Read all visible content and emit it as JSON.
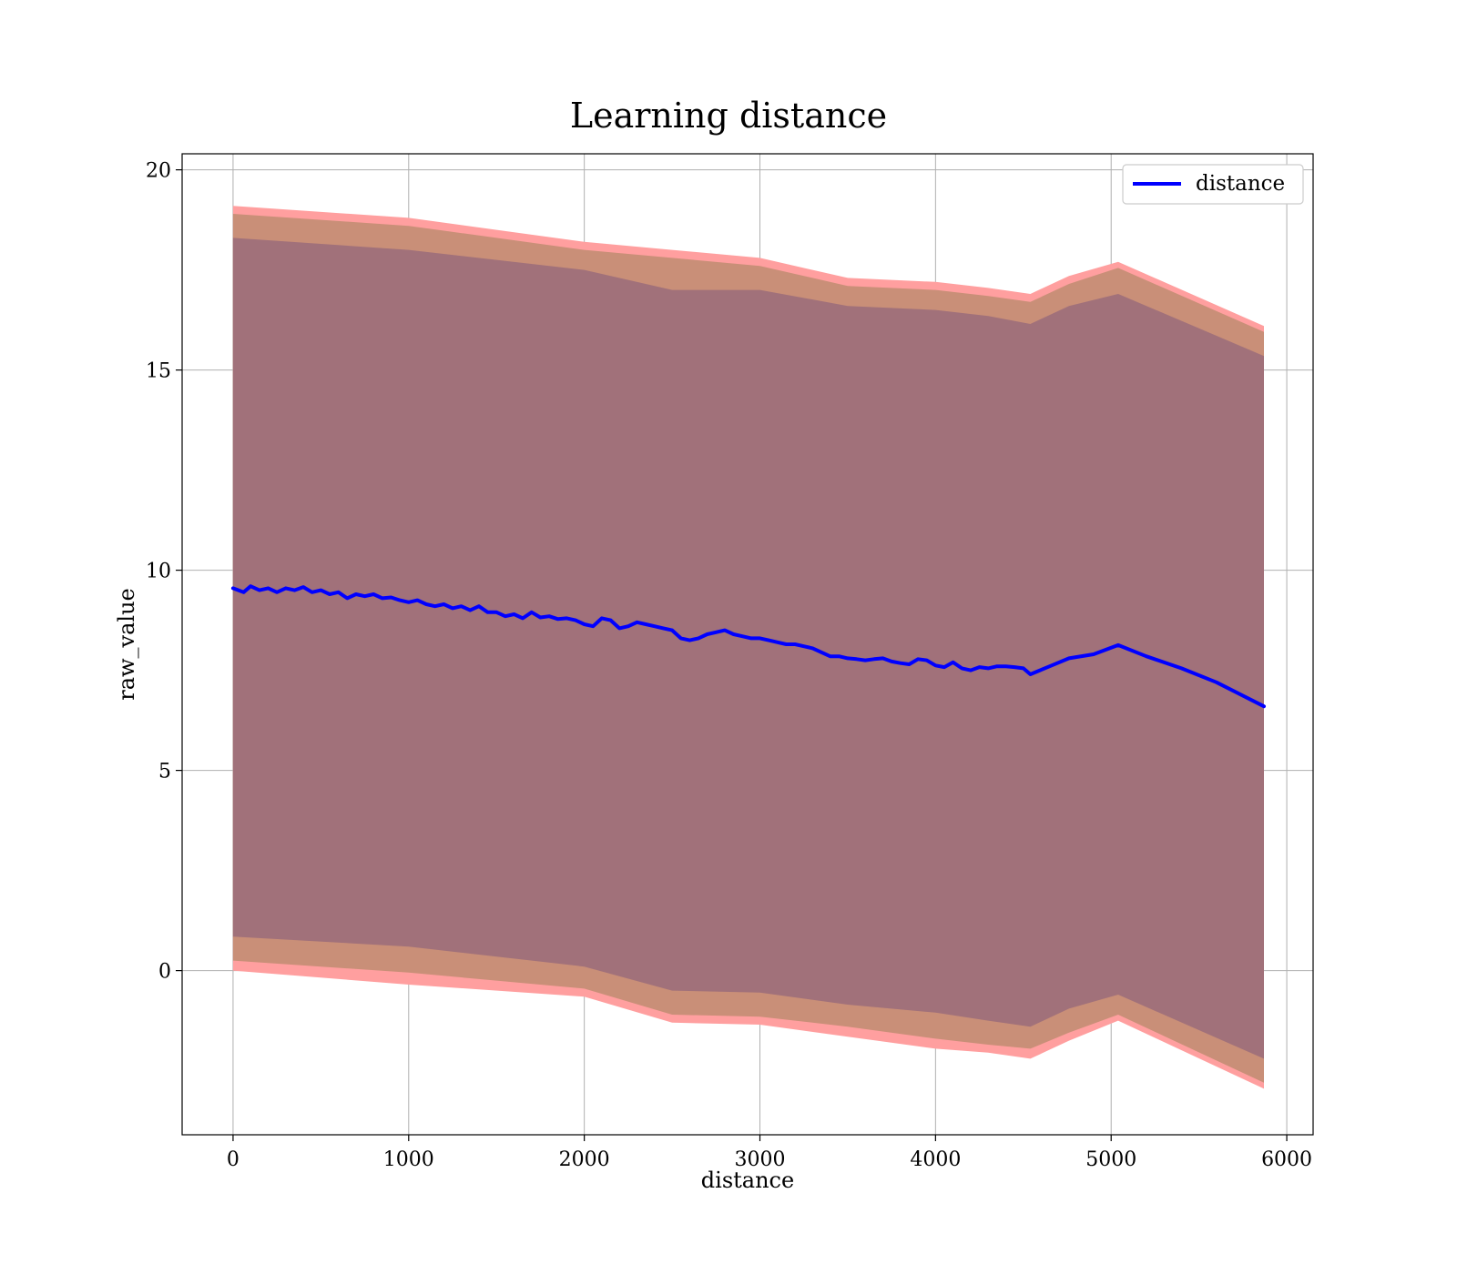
{
  "chart_data": {
    "type": "area",
    "title": "Learning distance",
    "xlabel": "distance",
    "ylabel": "raw_value",
    "xlim": [
      -290,
      6150
    ],
    "ylim": [
      -4.1,
      20.4
    ],
    "xticks": [
      0,
      1000,
      2000,
      3000,
      4000,
      5000,
      6000
    ],
    "yticks": [
      0,
      5,
      10,
      15,
      20
    ],
    "grid": true,
    "legend": {
      "placement": "top-right",
      "entries": [
        "distance"
      ]
    },
    "colors": {
      "line": "#0000ff",
      "outer_band": "#ff9f9f",
      "middle_band": "#c98f78",
      "inner_band": "#a1717a",
      "grid": "#b0b0b0"
    },
    "series": [
      {
        "name": "distance",
        "x": [
          0,
          60,
          100,
          150,
          200,
          250,
          300,
          350,
          400,
          450,
          500,
          550,
          600,
          650,
          700,
          750,
          800,
          850,
          900,
          950,
          1000,
          1050,
          1100,
          1150,
          1200,
          1250,
          1300,
          1350,
          1400,
          1450,
          1500,
          1550,
          1600,
          1650,
          1700,
          1750,
          1800,
          1850,
          1900,
          1950,
          2000,
          2050,
          2100,
          2150,
          2200,
          2250,
          2300,
          2350,
          2400,
          2450,
          2500,
          2550,
          2600,
          2650,
          2700,
          2750,
          2800,
          2850,
          2900,
          2950,
          3000,
          3050,
          3100,
          3150,
          3200,
          3250,
          3300,
          3350,
          3400,
          3450,
          3500,
          3550,
          3600,
          3650,
          3700,
          3750,
          3800,
          3850,
          3900,
          3950,
          4000,
          4050,
          4100,
          4150,
          4200,
          4250,
          4300,
          4350,
          4400,
          4450,
          4500,
          4540,
          4650,
          4760,
          4900,
          5040,
          5200,
          5400,
          5600,
          5870
        ],
        "y": [
          9.55,
          9.45,
          9.6,
          9.5,
          9.55,
          9.45,
          9.55,
          9.5,
          9.58,
          9.45,
          9.5,
          9.4,
          9.45,
          9.3,
          9.4,
          9.35,
          9.4,
          9.3,
          9.32,
          9.25,
          9.2,
          9.25,
          9.15,
          9.1,
          9.15,
          9.05,
          9.1,
          9.0,
          9.1,
          8.95,
          8.95,
          8.85,
          8.9,
          8.8,
          8.95,
          8.82,
          8.85,
          8.78,
          8.8,
          8.75,
          8.65,
          8.6,
          8.8,
          8.75,
          8.55,
          8.6,
          8.7,
          8.65,
          8.6,
          8.55,
          8.5,
          8.3,
          8.25,
          8.3,
          8.4,
          8.45,
          8.5,
          8.4,
          8.35,
          8.3,
          8.3,
          8.25,
          8.2,
          8.15,
          8.15,
          8.1,
          8.05,
          7.95,
          7.85,
          7.85,
          7.8,
          7.78,
          7.75,
          7.78,
          7.8,
          7.72,
          7.68,
          7.65,
          7.78,
          7.75,
          7.62,
          7.58,
          7.7,
          7.55,
          7.5,
          7.58,
          7.55,
          7.6,
          7.6,
          7.58,
          7.55,
          7.4,
          7.6,
          7.8,
          7.9,
          8.13,
          7.85,
          7.55,
          7.2,
          6.6
        ]
      }
    ],
    "bands": [
      {
        "layer": "outer",
        "x": [
          0,
          1000,
          2000,
          2500,
          3000,
          3500,
          4000,
          4300,
          4540,
          4760,
          5040,
          5870
        ],
        "upper": [
          19.1,
          18.8,
          18.2,
          18.0,
          17.8,
          17.3,
          17.2,
          17.05,
          16.9,
          17.35,
          17.7,
          16.1
        ],
        "lower": [
          0.0,
          -0.35,
          -0.65,
          -1.3,
          -1.35,
          -1.65,
          -1.95,
          -2.05,
          -2.2,
          -1.75,
          -1.25,
          -2.95
        ]
      },
      {
        "layer": "middle",
        "x": [
          0,
          1000,
          2000,
          2500,
          3000,
          3500,
          4000,
          4300,
          4540,
          4760,
          5040,
          5870
        ],
        "upper": [
          18.9,
          18.6,
          18.0,
          17.8,
          17.6,
          17.1,
          17.0,
          16.85,
          16.7,
          17.15,
          17.55,
          15.95
        ],
        "lower": [
          0.25,
          -0.05,
          -0.45,
          -1.1,
          -1.15,
          -1.4,
          -1.7,
          -1.85,
          -1.95,
          -1.55,
          -1.1,
          -2.8
        ]
      },
      {
        "layer": "inner",
        "x": [
          0,
          1000,
          2000,
          2500,
          3000,
          3500,
          4000,
          4300,
          4540,
          4760,
          5040,
          5870
        ],
        "upper": [
          18.3,
          18.0,
          17.5,
          17.0,
          17.0,
          16.6,
          16.5,
          16.35,
          16.15,
          16.6,
          16.9,
          15.35
        ],
        "lower": [
          0.85,
          0.6,
          0.1,
          -0.5,
          -0.55,
          -0.85,
          -1.05,
          -1.25,
          -1.4,
          -0.95,
          -0.6,
          -2.2
        ]
      }
    ]
  }
}
